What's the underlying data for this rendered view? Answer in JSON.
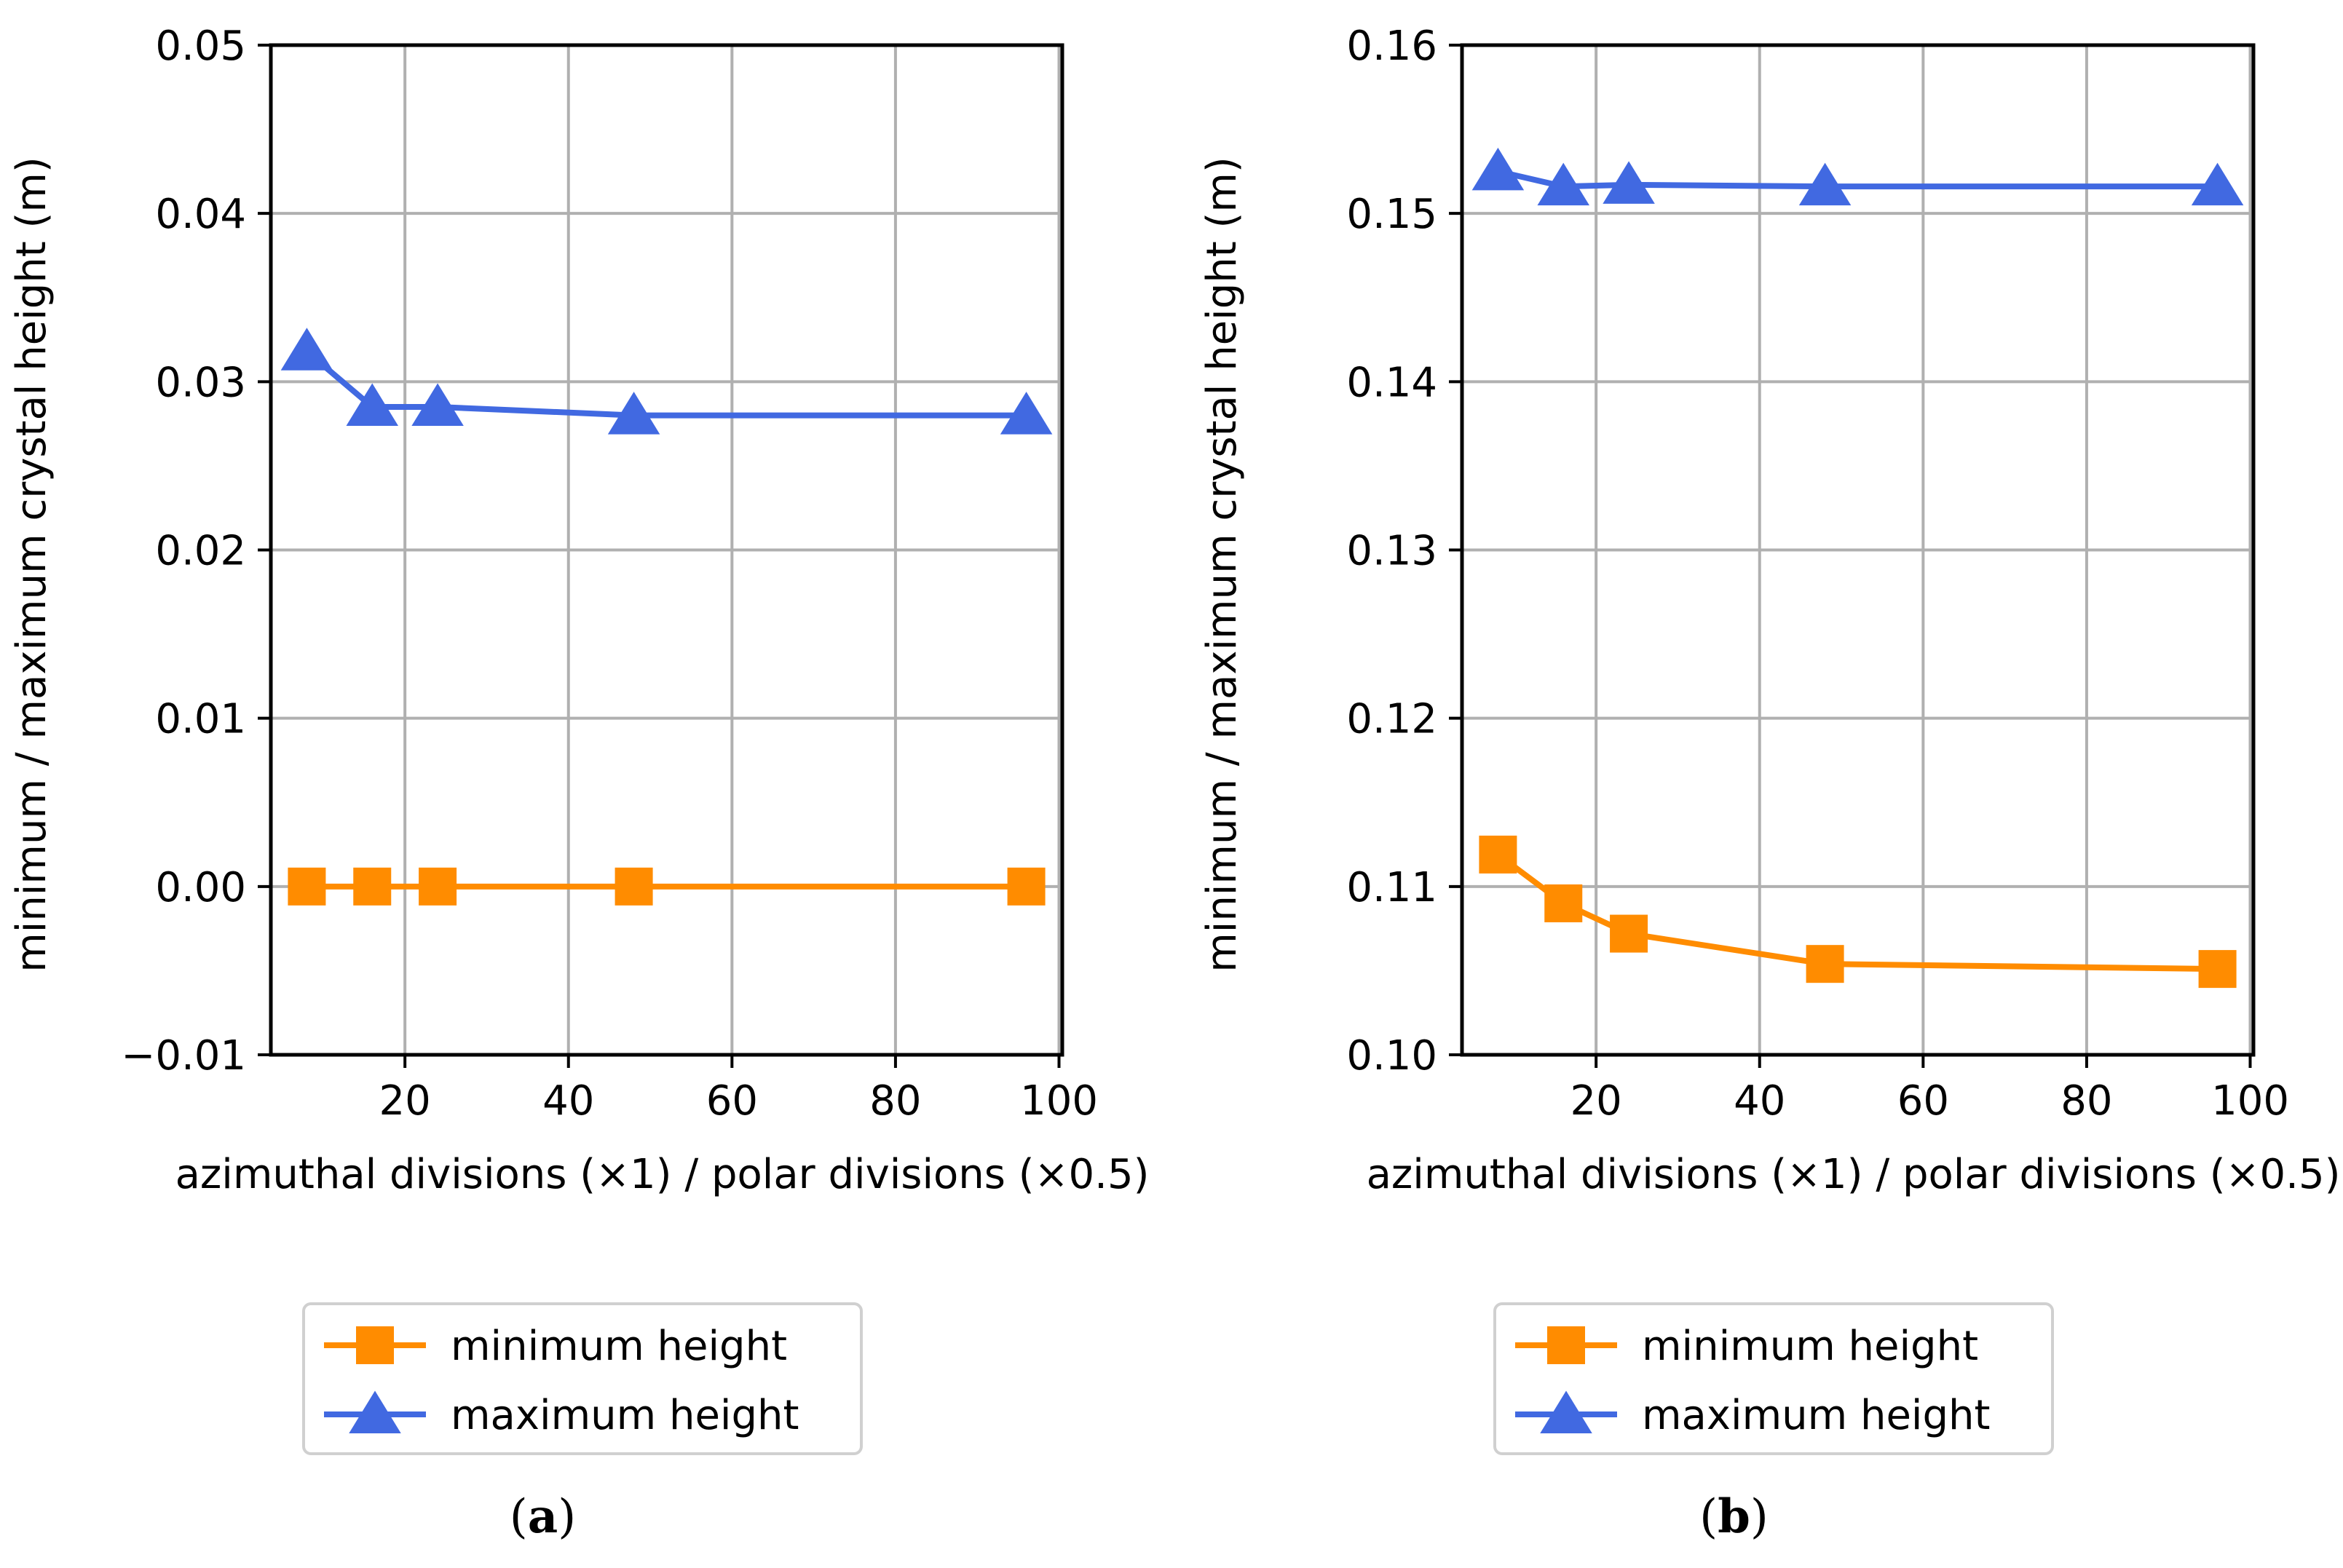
{
  "colors": {
    "minimum": "#ff8c00",
    "maximum": "#4169e1",
    "grid": "#b0b0b0",
    "axis": "#000000"
  },
  "markers": {
    "minimum": "square",
    "maximum": "triangle-up"
  },
  "chart_data": [
    {
      "type": "line",
      "panel_label": "a",
      "xlabel": "azimuthal divisions (×1) / polar divisions (×0.5)",
      "ylabel": "minimum / maximum crystal height (m)",
      "xlim": [
        3.6,
        100.4
      ],
      "ylim": [
        -0.01,
        0.05
      ],
      "xticks": [
        20,
        40,
        60,
        80,
        100
      ],
      "xtick_labels": [
        "20",
        "40",
        "60",
        "80",
        "100"
      ],
      "yticks": [
        -0.01,
        0.0,
        0.01,
        0.02,
        0.03,
        0.04,
        0.05
      ],
      "ytick_labels": [
        "−0.01",
        "0.00",
        "0.01",
        "0.02",
        "0.03",
        "0.04",
        "0.05"
      ],
      "grid": true,
      "legend_position": "below plot",
      "x": [
        8,
        16,
        24,
        48,
        96
      ],
      "series": [
        {
          "name": "minimum height",
          "key": "minimum",
          "values": [
            0.0,
            0.0,
            0.0,
            0.0,
            0.0
          ]
        },
        {
          "name": "maximum height",
          "key": "maximum",
          "values": [
            0.0318,
            0.0285,
            0.0285,
            0.028,
            0.028
          ]
        }
      ]
    },
    {
      "type": "line",
      "panel_label": "b",
      "xlabel": "azimuthal divisions (×1) / polar divisions (×0.5)",
      "ylabel": "minimum / maximum crystal height (m)",
      "xlim": [
        3.6,
        100.4
      ],
      "ylim": [
        0.1,
        0.16
      ],
      "xticks": [
        20,
        40,
        60,
        80,
        100
      ],
      "xtick_labels": [
        "20",
        "40",
        "60",
        "80",
        "100"
      ],
      "yticks": [
        0.1,
        0.11,
        0.12,
        0.13,
        0.14,
        0.15,
        0.16
      ],
      "ytick_labels": [
        "0.10",
        "0.11",
        "0.12",
        "0.13",
        "0.14",
        "0.15",
        "0.16"
      ],
      "grid": true,
      "legend_position": "below plot",
      "x": [
        8,
        16,
        24,
        48,
        96
      ],
      "series": [
        {
          "name": "minimum height",
          "key": "minimum",
          "values": [
            0.1119,
            0.109,
            0.1072,
            0.1054,
            0.1051
          ]
        },
        {
          "name": "maximum height",
          "key": "maximum",
          "values": [
            0.1525,
            0.1516,
            0.1517,
            0.1516,
            0.1516
          ]
        }
      ]
    }
  ]
}
